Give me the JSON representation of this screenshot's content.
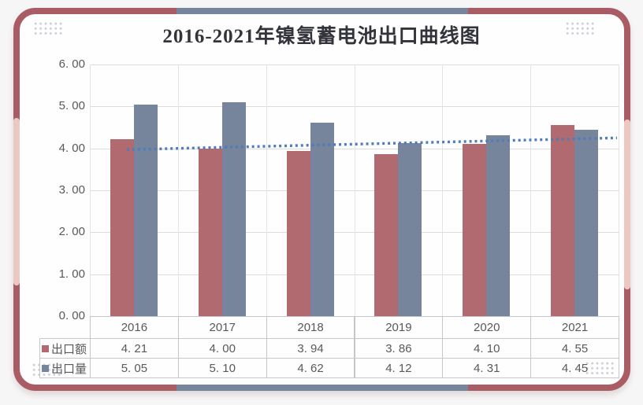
{
  "title": "2016-2021年镍氢蓄电池出口曲线图",
  "chart_data": {
    "type": "bar",
    "title": "2016-2021年镍氢蓄电池出口曲线图",
    "categories": [
      "2016",
      "2017",
      "2018",
      "2019",
      "2020",
      "2021"
    ],
    "series": [
      {
        "key": "export-value",
        "name": "出口额",
        "color": "#b06a70",
        "values": [
          4.21,
          4.0,
          3.94,
          3.86,
          4.1,
          4.55
        ]
      },
      {
        "key": "export-volume",
        "name": "出口量",
        "color": "#76859b",
        "values": [
          5.05,
          5.1,
          4.62,
          4.12,
          4.31,
          4.45
        ]
      }
    ],
    "trendline": {
      "of_series": "出口额",
      "type": "linear",
      "start_value": 3.97,
      "end_value": 4.25,
      "color": "#4f7cba",
      "style": "dotted"
    },
    "ylim": [
      0,
      6
    ],
    "ytick_labels": [
      "0. 00",
      "1. 00",
      "2. 00",
      "3. 00",
      "4. 00",
      "5. 00",
      "6. 00"
    ],
    "grid": true,
    "legend_position": "data-table-left"
  },
  "data_table": {
    "columns": [
      "2016",
      "2017",
      "2018",
      "2019",
      "2020",
      "2021"
    ],
    "rows": [
      {
        "legend": "出口额",
        "color": "#b06a70",
        "cells": [
          "4. 21",
          "4. 00",
          "3. 94",
          "3. 86",
          "4. 10",
          "4. 55"
        ]
      },
      {
        "legend": "出口量",
        "color": "#76859b",
        "cells": [
          "5. 05",
          "5. 10",
          "4. 62",
          "4. 12",
          "4. 31",
          "4. 45"
        ]
      }
    ]
  },
  "frame": {
    "border_color": "#a95c64",
    "top_bottom_accent_color": "#76849c",
    "side_accent_color": "#ecc8c5",
    "corner_dot_color": "#cdd0d7"
  }
}
